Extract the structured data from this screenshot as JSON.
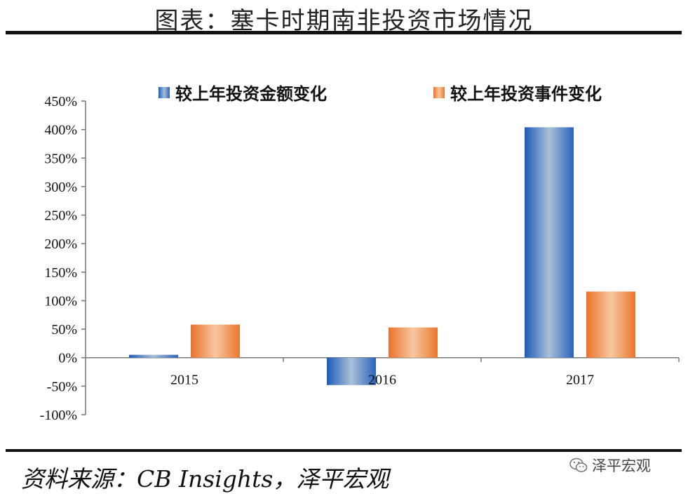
{
  "header": {
    "title": "图表：塞卡时期南非投资市场情况"
  },
  "footer": {
    "source": "资料来源：CB Insights，泽平宏观",
    "watermark": "泽平宏观"
  },
  "colors": {
    "series_a": "#3a74c4",
    "series_b": "#ee8a3d"
  },
  "chart_data": {
    "type": "bar",
    "categories": [
      "2015",
      "2016",
      "2017"
    ],
    "series": [
      {
        "name": "较上年投资金额变化",
        "values": [
          5,
          -48,
          404
        ]
      },
      {
        "name": "较上年投资事件变化",
        "values": [
          58,
          53,
          116
        ]
      }
    ],
    "ylim": [
      -100,
      450
    ],
    "yticks": [
      "-100%",
      "-50%",
      "0%",
      "50%",
      "100%",
      "150%",
      "200%",
      "250%",
      "300%",
      "350%",
      "400%",
      "450%"
    ],
    "grid": false,
    "legend": "top"
  }
}
